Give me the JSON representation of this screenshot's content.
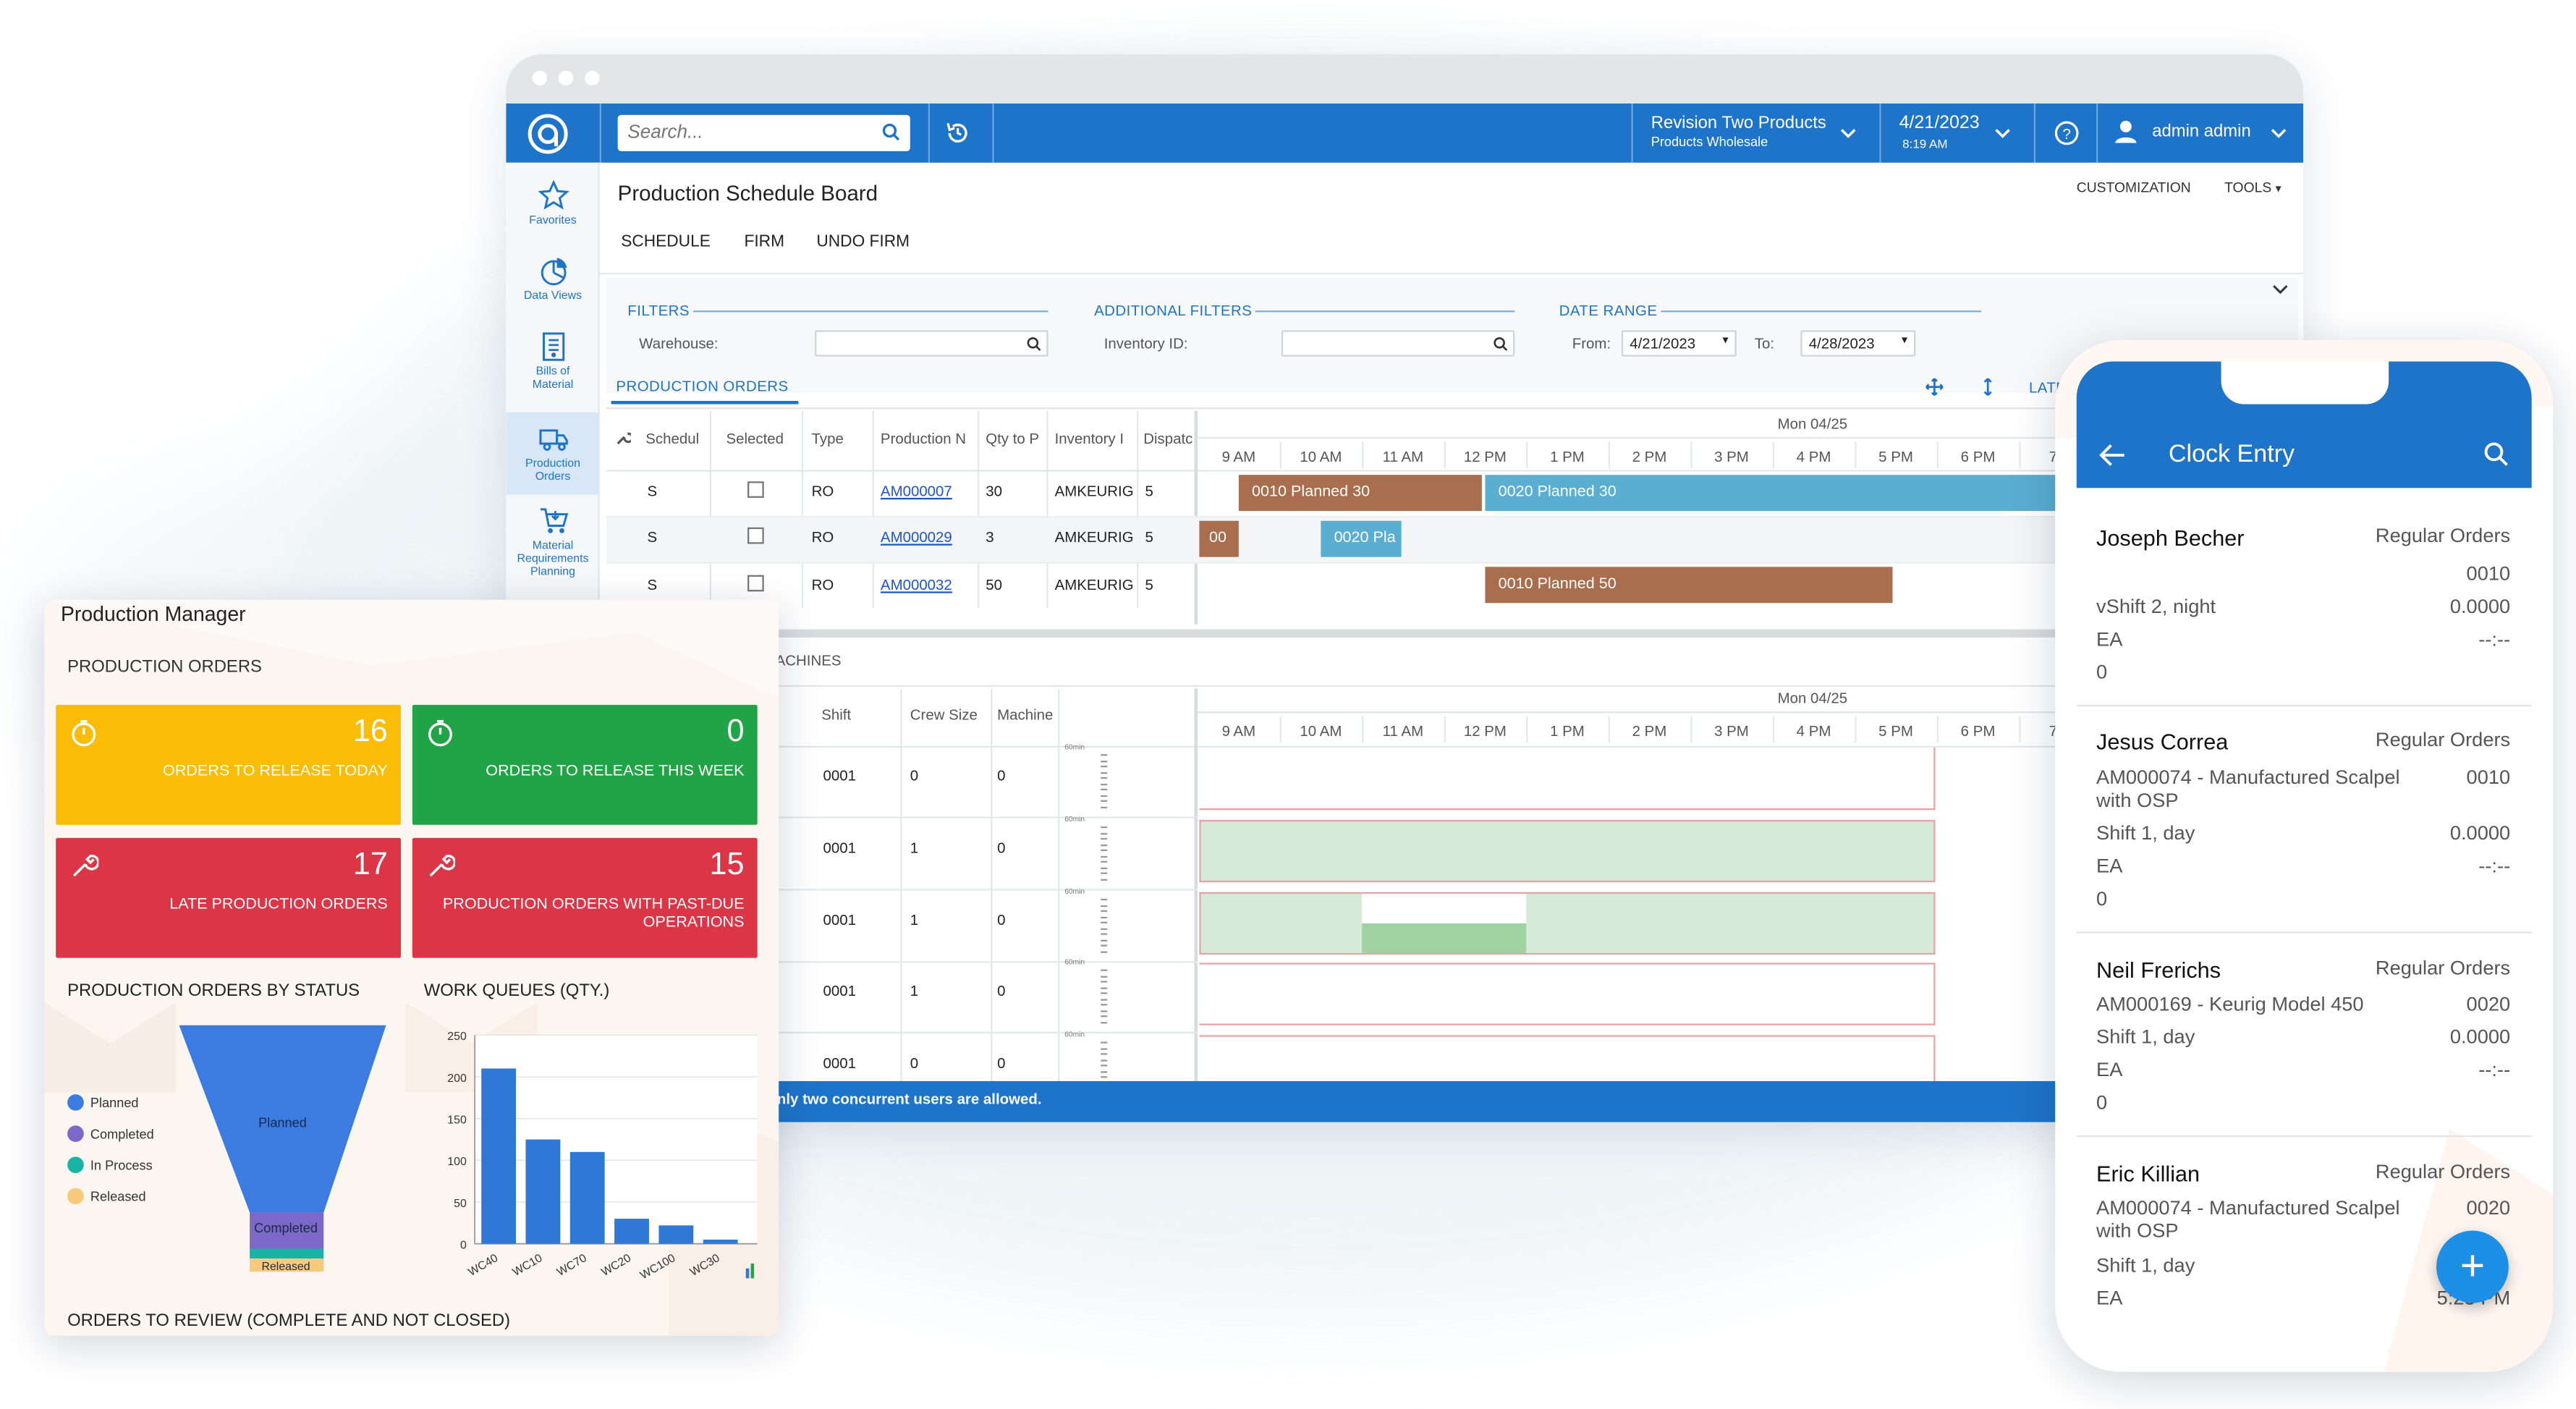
{
  "app": {
    "search_placeholder": "Search...",
    "company": {
      "name": "Revision Two Products",
      "branch": "Products Wholesale"
    },
    "date": {
      "value": "4/21/2023",
      "time": "8:19 AM"
    },
    "user": "admin admin",
    "nav": [
      {
        "label": "Favorites",
        "icon": "star-icon"
      },
      {
        "label": "Data Views",
        "icon": "pie-chart-icon"
      },
      {
        "label": "Bills of Material",
        "icon": "document-icon"
      },
      {
        "label": "Production Orders",
        "icon": "truck-icon"
      },
      {
        "label": "Material Requirements Planning",
        "icon": "cart-icon"
      }
    ]
  },
  "screen": {
    "title": "Production Schedule Board",
    "customization": "CUSTOMIZATION",
    "tools": "TOOLS",
    "toolbar": {
      "schedule": "SCHEDULE",
      "firm": "FIRM",
      "undo_firm": "UNDO FIRM"
    },
    "filters": {
      "filters_label": "FILTERS",
      "additional_label": "ADDITIONAL FILTERS",
      "date_range_label": "DATE RANGE",
      "warehouse_label": "Warehouse:",
      "inventory_label": "Inventory ID:",
      "from_label": "From:",
      "from_value": "4/21/2023",
      "to_label": "To:",
      "to_value": "4/28/2023"
    },
    "orders_tab": "PRODUCTION ORDERS",
    "late_label": "LATE",
    "order_columns": [
      "Schedul",
      "Selected",
      "Type",
      "Production N",
      "Qty to P",
      "Inventory I",
      "Dispatc"
    ],
    "orders": [
      {
        "sched": "S",
        "type": "RO",
        "prod": "AM000007",
        "qty": "30",
        "inv": "AMKEURIG",
        "disp": "5"
      },
      {
        "sched": "S",
        "type": "RO",
        "prod": "AM000029",
        "qty": "3",
        "inv": "AMKEURIG",
        "disp": "5"
      },
      {
        "sched": "S",
        "type": "RO",
        "prod": "AM000032",
        "qty": "50",
        "inv": "AMKEURIG",
        "disp": "5"
      }
    ],
    "day_label": "Mon 04/25",
    "hours": [
      "9 AM",
      "10 AM",
      "11 AM",
      "12 PM",
      "1 PM",
      "2 PM",
      "3 PM",
      "4 PM",
      "5 PM",
      "6 PM",
      "7 P"
    ],
    "bars": {
      "r1a": "0010 Planned 30",
      "r1b": "0020 Planned 30",
      "r2a": "00",
      "r2b": "0020 Pla",
      "r3a": "0010 Planned 50"
    },
    "machines_label": "ACHINES",
    "machine_columns": [
      "Shift",
      "Crew Size",
      "Machine"
    ],
    "machines": [
      {
        "shift": "0001",
        "crew": "0",
        "machine": "0"
      },
      {
        "shift": "0001",
        "crew": "1",
        "machine": "0"
      },
      {
        "shift": "0001",
        "crew": "1",
        "machine": "0"
      },
      {
        "shift": "0001",
        "crew": "1",
        "machine": "0"
      },
      {
        "shift": "0001",
        "crew": "0",
        "machine": "0"
      }
    ],
    "minutes_label": "60min",
    "status_message": "nly two concurrent users are allowed."
  },
  "dashboard": {
    "title": "Production Manager",
    "section": "PRODUCTION ORDERS",
    "tiles": [
      {
        "value": "16",
        "label": "ORDERS TO RELEASE TODAY",
        "color": "#fbbc05"
      },
      {
        "value": "0",
        "label": "ORDERS TO RELEASE THIS WEEK",
        "color": "#21a446"
      },
      {
        "value": "17",
        "label": "LATE PRODUCTION ORDERS",
        "color": "#dc3545"
      },
      {
        "value": "15",
        "label_line1": "PRODUCTION ORDERS WITH PAST-DUE",
        "label_line2": "OPERATIONS",
        "color": "#dc3545"
      }
    ],
    "funnel_title": "PRODUCTION ORDERS BY STATUS",
    "legend": [
      {
        "name": "Planned",
        "color": "#3c7be0"
      },
      {
        "name": "Completed",
        "color": "#7b68c8"
      },
      {
        "name": "In Process",
        "color": "#1bb3a6"
      },
      {
        "name": "Released",
        "color": "#f7c97a"
      }
    ],
    "funnel_labels": {
      "planned": "Planned",
      "completed": "Completed",
      "released": "Released"
    },
    "bar_title": "WORK QUEUES (QTY.)",
    "footer": "ORDERS TO REVIEW (COMPLETE AND NOT CLOSED)"
  },
  "chart_data": {
    "type": "bar",
    "categories": [
      "WC40",
      "WC10",
      "WC70",
      "WC20",
      "WC100",
      "WC30"
    ],
    "values": [
      210,
      125,
      110,
      30,
      22,
      5
    ],
    "ylim": [
      0,
      250
    ],
    "yticks": [
      "0",
      "50",
      "100",
      "150",
      "200",
      "250"
    ],
    "color": "#2f78d6"
  },
  "phone": {
    "title": "Clock Entry",
    "entries": [
      {
        "name": "Joseph Becher",
        "type": "Regular Orders",
        "line1_right": "0010",
        "shift": "vShift 2, night",
        "hours": "0.0000",
        "uom": "EA",
        "time": "--:--",
        "qty": "0"
      },
      {
        "name": "Jesus Correa",
        "type": "Regular Orders",
        "item1": "AM000074 - Manufactured Scalpel",
        "item2": "with OSP",
        "op": "0010",
        "shift": "Shift 1, day",
        "hours": "0.0000",
        "uom": "EA",
        "time": "--:--",
        "qty": "0"
      },
      {
        "name": "Neil Frerichs",
        "type": "Regular Orders",
        "item1": "AM000169 - Keurig Model 450",
        "op": "0020",
        "shift": "Shift 1, day",
        "hours": "0.0000",
        "uom": "EA",
        "time": "--:--",
        "qty": "0"
      },
      {
        "name": "Eric Killian",
        "type": "Regular Orders",
        "item1": "AM000074 - Manufactured Scalpel",
        "item2": "with OSP",
        "op": "0020",
        "shift": "Shift 1, day",
        "uom": "EA",
        "time": "5:23 PM"
      }
    ],
    "fab": "+"
  }
}
